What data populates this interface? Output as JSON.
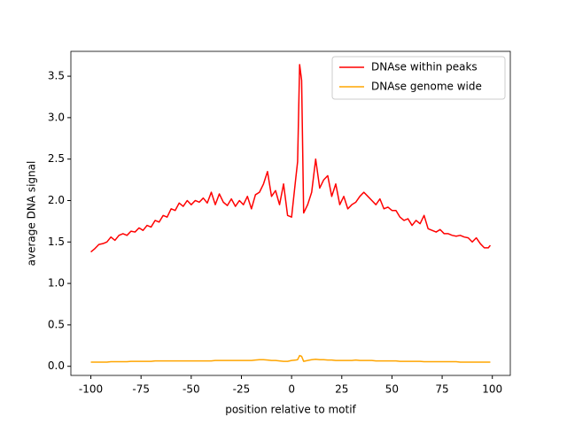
{
  "chart_data": {
    "type": "line",
    "x_label": "position relative to motif",
    "y_label": "average DNA signal",
    "x": [
      -100,
      -98,
      -96,
      -94,
      -92,
      -90,
      -88,
      -86,
      -84,
      -82,
      -80,
      -78,
      -76,
      -74,
      -72,
      -70,
      -68,
      -66,
      -64,
      -62,
      -60,
      -58,
      -56,
      -54,
      -52,
      -50,
      -48,
      -46,
      -44,
      -42,
      -40,
      -38,
      -36,
      -34,
      -32,
      -30,
      -28,
      -26,
      -24,
      -22,
      -20,
      -18,
      -16,
      -14,
      -12,
      -10,
      -8,
      -6,
      -4,
      -2,
      0,
      2,
      3,
      4,
      5,
      6,
      8,
      10,
      12,
      14,
      16,
      18,
      20,
      22,
      24,
      26,
      28,
      30,
      32,
      34,
      36,
      38,
      40,
      42,
      44,
      46,
      48,
      50,
      52,
      54,
      56,
      58,
      60,
      62,
      64,
      66,
      68,
      70,
      72,
      74,
      76,
      78,
      80,
      82,
      84,
      86,
      88,
      90,
      92,
      94,
      96,
      98,
      99
    ],
    "series": [
      {
        "name": "DNAse within peaks",
        "color": "#ff0000",
        "values": [
          1.38,
          1.42,
          1.47,
          1.48,
          1.5,
          1.56,
          1.52,
          1.58,
          1.6,
          1.58,
          1.63,
          1.62,
          1.67,
          1.64,
          1.7,
          1.68,
          1.76,
          1.74,
          1.82,
          1.8,
          1.9,
          1.88,
          1.97,
          1.93,
          2.0,
          1.95,
          2.0,
          1.98,
          2.03,
          1.97,
          2.1,
          1.95,
          2.08,
          1.98,
          1.94,
          2.02,
          1.93,
          2.0,
          1.95,
          2.05,
          1.9,
          2.07,
          2.1,
          2.2,
          2.35,
          2.05,
          2.12,
          1.95,
          2.2,
          1.82,
          1.8,
          2.25,
          2.47,
          3.64,
          3.45,
          1.85,
          1.95,
          2.1,
          2.5,
          2.15,
          2.25,
          2.3,
          2.05,
          2.2,
          1.95,
          2.05,
          1.9,
          1.95,
          1.98,
          2.05,
          2.1,
          2.05,
          2.0,
          1.95,
          2.02,
          1.9,
          1.92,
          1.88,
          1.88,
          1.8,
          1.76,
          1.78,
          1.7,
          1.76,
          1.72,
          1.82,
          1.66,
          1.64,
          1.62,
          1.65,
          1.6,
          1.6,
          1.58,
          1.57,
          1.58,
          1.56,
          1.55,
          1.5,
          1.55,
          1.48,
          1.43,
          1.43,
          1.46
        ]
      },
      {
        "name": "DNAse genome wide",
        "color": "#ffa500",
        "values": [
          0.05,
          0.05,
          0.05,
          0.05,
          0.05,
          0.055,
          0.055,
          0.055,
          0.055,
          0.055,
          0.06,
          0.06,
          0.06,
          0.06,
          0.06,
          0.06,
          0.065,
          0.065,
          0.065,
          0.065,
          0.065,
          0.065,
          0.065,
          0.065,
          0.065,
          0.065,
          0.065,
          0.065,
          0.065,
          0.065,
          0.065,
          0.07,
          0.07,
          0.07,
          0.07,
          0.07,
          0.07,
          0.07,
          0.07,
          0.07,
          0.07,
          0.075,
          0.08,
          0.08,
          0.075,
          0.07,
          0.07,
          0.065,
          0.06,
          0.06,
          0.07,
          0.075,
          0.08,
          0.13,
          0.12,
          0.06,
          0.07,
          0.08,
          0.085,
          0.08,
          0.08,
          0.075,
          0.075,
          0.07,
          0.07,
          0.07,
          0.07,
          0.07,
          0.075,
          0.07,
          0.07,
          0.07,
          0.07,
          0.065,
          0.065,
          0.065,
          0.065,
          0.065,
          0.065,
          0.06,
          0.06,
          0.06,
          0.06,
          0.06,
          0.06,
          0.055,
          0.055,
          0.055,
          0.055,
          0.055,
          0.055,
          0.055,
          0.055,
          0.055,
          0.05,
          0.05,
          0.05,
          0.05,
          0.05,
          0.05,
          0.05,
          0.05,
          0.05
        ]
      }
    ],
    "xlim": [
      -109.95,
      108.95
    ],
    "ylim": [
      -0.11,
      3.8
    ],
    "xticks": [
      -100,
      -75,
      -50,
      -25,
      0,
      25,
      50,
      75,
      100
    ],
    "yticks": [
      {
        "value": 0,
        "label": "0.0"
      },
      0.5,
      {
        "value": 1,
        "label": "1.0"
      },
      1.5,
      {
        "value": 2,
        "label": "2.0"
      },
      2.5,
      {
        "value": 3,
        "label": "3.0"
      },
      3.5
    ],
    "legend": "upper right"
  }
}
